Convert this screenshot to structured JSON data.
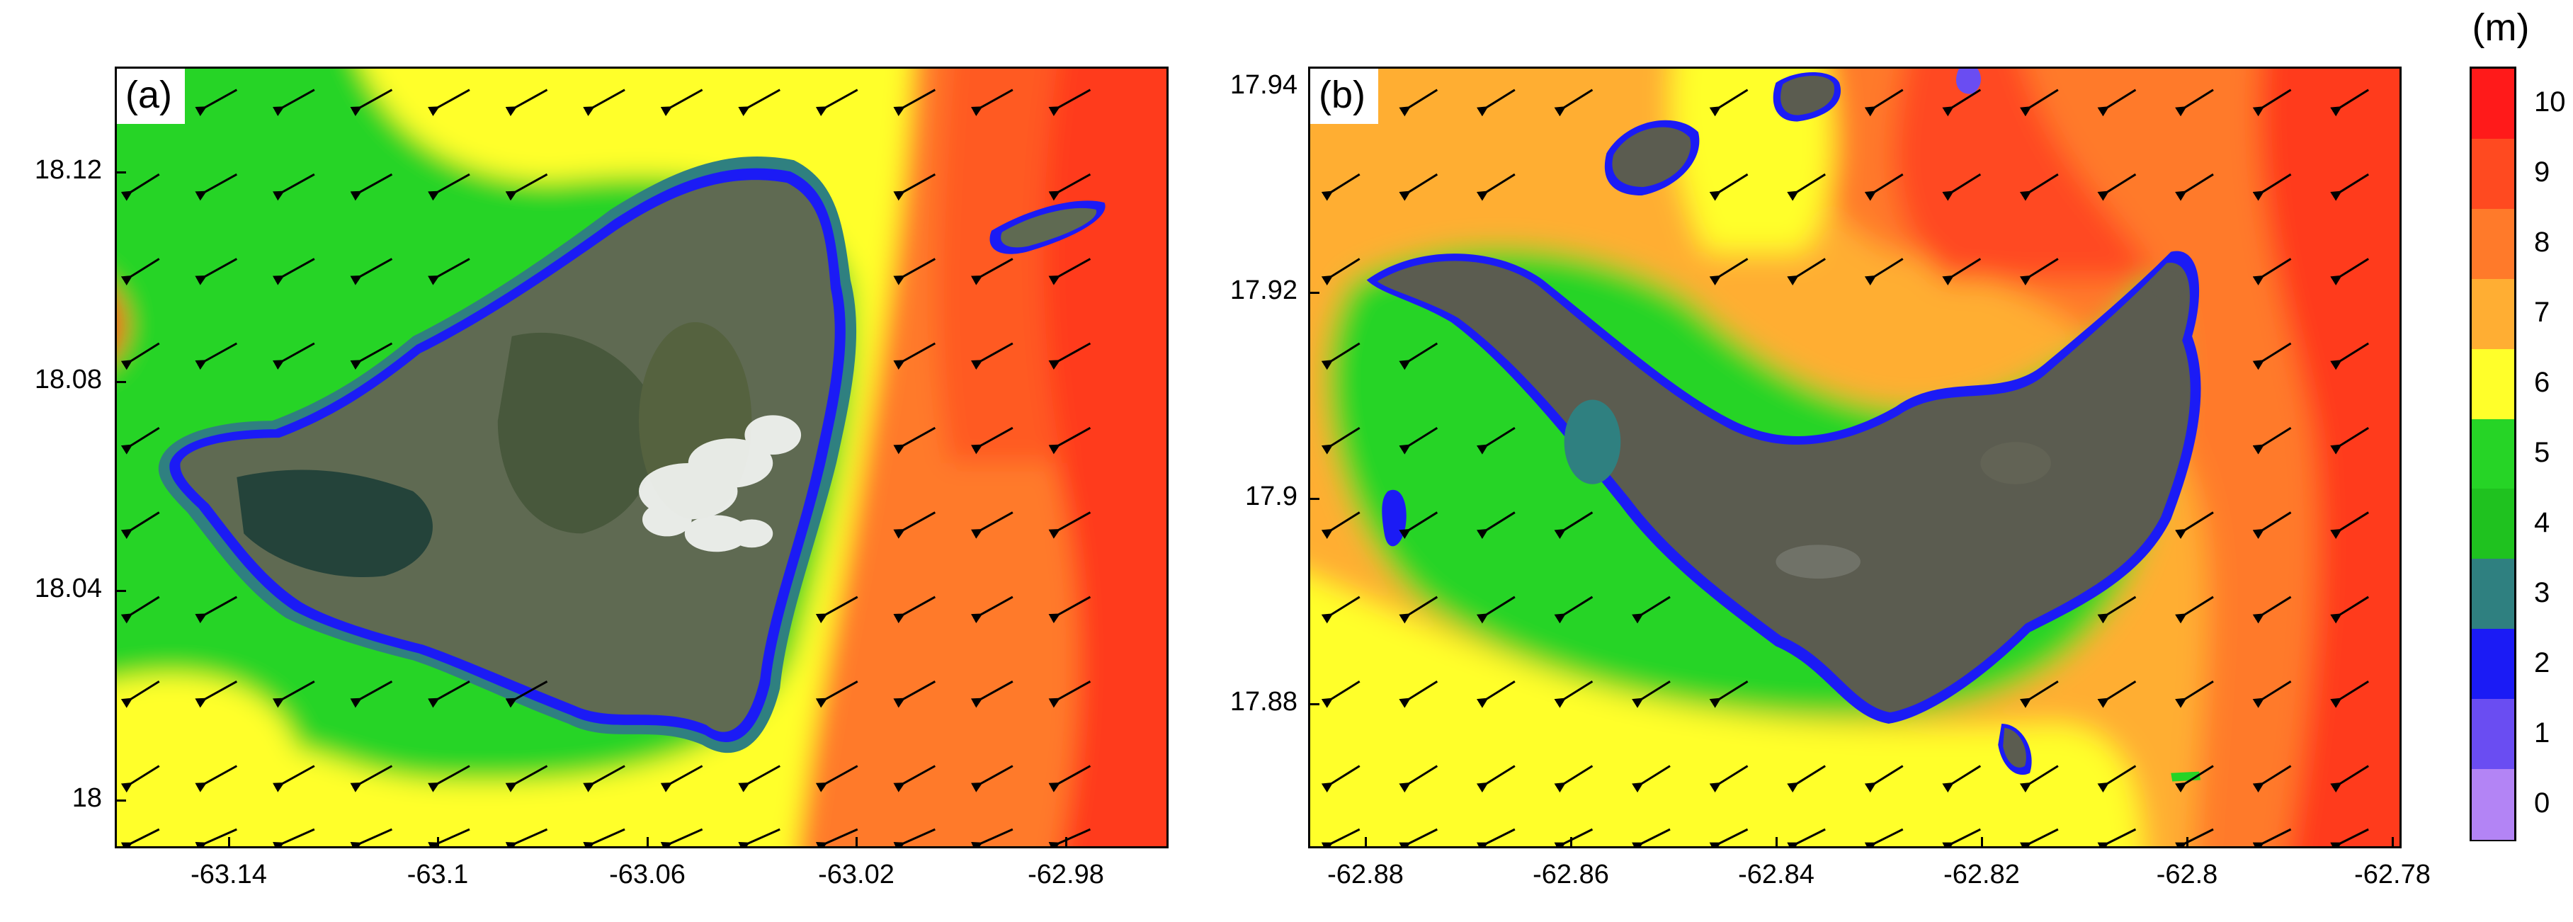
{
  "colorbar": {
    "unit": "(m)",
    "labels": [
      "10",
      "9",
      "8",
      "7",
      "6",
      "5",
      "4",
      "3",
      "2",
      "1",
      "0"
    ],
    "colors": [
      "#ff1a1a",
      "#ff4a20",
      "#ff7a2a",
      "#ffae33",
      "#ffff2a",
      "#26d426",
      "#1fc21f",
      "#2f8080",
      "#1b1bf5",
      "#6a4df2",
      "#b384f5"
    ]
  },
  "panel_a": {
    "label": "(a)",
    "yticks": [
      "18.12",
      "18.08",
      "18.04",
      "18"
    ],
    "xticks": [
      "-63.14",
      "-63.1",
      "-63.06",
      "-63.02",
      "-62.98"
    ]
  },
  "panel_b": {
    "label": "(b)",
    "yticks": [
      "17.94",
      "17.92",
      "17.9",
      "17.88"
    ],
    "xticks": [
      "-62.88",
      "-62.86",
      "-62.84",
      "-62.82",
      "-62.8",
      "-62.78"
    ]
  },
  "icons": {
    "wave_arrow": "arrow-icon"
  }
}
